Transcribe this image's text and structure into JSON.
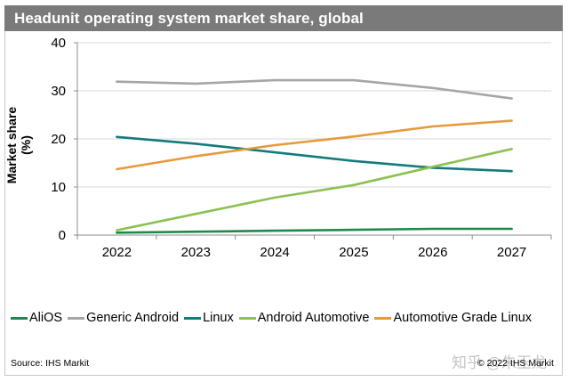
{
  "title": "Headunit operating system market share, global",
  "source": "Source: IHS Markit",
  "copyright": "© 2022 IHS Markit",
  "watermark": "知乎 @朱玉龙",
  "chart_data": {
    "type": "line",
    "title": "Headunit operating system market share, global",
    "xlabel": "",
    "ylabel": "Market share (%)",
    "categories": [
      "2022",
      "2023",
      "2024",
      "2025",
      "2026",
      "2027"
    ],
    "ylim": [
      0,
      40
    ],
    "yticks": [
      0,
      10,
      20,
      30,
      40
    ],
    "ytick_labels": [
      "0",
      "10",
      "20",
      "30",
      "40"
    ],
    "grid": true,
    "legend_position": "bottom",
    "series": [
      {
        "name": "AliOS",
        "color": "#1e8a4a",
        "values": [
          0.5,
          0.7,
          0.9,
          1.1,
          1.3,
          1.3
        ]
      },
      {
        "name": "Generic Android",
        "color": "#a6a6a6",
        "values": [
          31.9,
          31.5,
          32.2,
          32.2,
          30.6,
          28.4
        ]
      },
      {
        "name": "Linux",
        "color": "#137b7b",
        "values": [
          20.4,
          19.0,
          17.2,
          15.4,
          14.0,
          13.3
        ]
      },
      {
        "name": "Android Automotive",
        "color": "#8cc152",
        "values": [
          1.0,
          4.4,
          7.8,
          10.4,
          14.2,
          17.9
        ]
      },
      {
        "name": "Automotive Grade Linux",
        "color": "#e69a3c",
        "values": [
          13.7,
          16.4,
          18.7,
          20.5,
          22.6,
          23.8
        ]
      }
    ]
  }
}
